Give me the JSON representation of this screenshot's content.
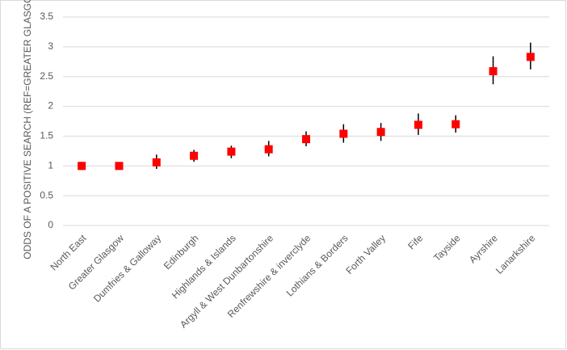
{
  "chart_data": {
    "type": "errorbar",
    "y_label": "ODDS OF A POSITIVE SEARCH (REF=GREATER GLASGOW)",
    "categories": [
      "North East",
      "Greater Glasgow",
      "Dumfries & Galloway",
      "Edinburgh",
      "Highlands & Islands",
      "Argyll & West Dunbartonshire",
      "Renfrewshire & inverclyde",
      "Lothians & Borders",
      "Forth Valley",
      "Fife",
      "Tayside",
      "Ayrshire",
      "Lanarkshire"
    ],
    "values": [
      1.0,
      1.0,
      1.06,
      1.17,
      1.24,
      1.28,
      1.45,
      1.54,
      1.57,
      1.69,
      1.7,
      2.59,
      2.83
    ],
    "lower": [
      0.93,
      1.0,
      0.95,
      1.07,
      1.13,
      1.16,
      1.33,
      1.39,
      1.42,
      1.52,
      1.56,
      2.37,
      2.62
    ],
    "upper": [
      1.07,
      1.0,
      1.19,
      1.27,
      1.34,
      1.42,
      1.58,
      1.7,
      1.72,
      1.88,
      1.85,
      2.84,
      3.07
    ],
    "color": "#ff0000",
    "error_color": "#000000",
    "ylim": [
      0,
      3.5
    ],
    "yticks": [
      0,
      0.5,
      1,
      1.5,
      2,
      2.5,
      3,
      3.5
    ],
    "grid": true
  }
}
